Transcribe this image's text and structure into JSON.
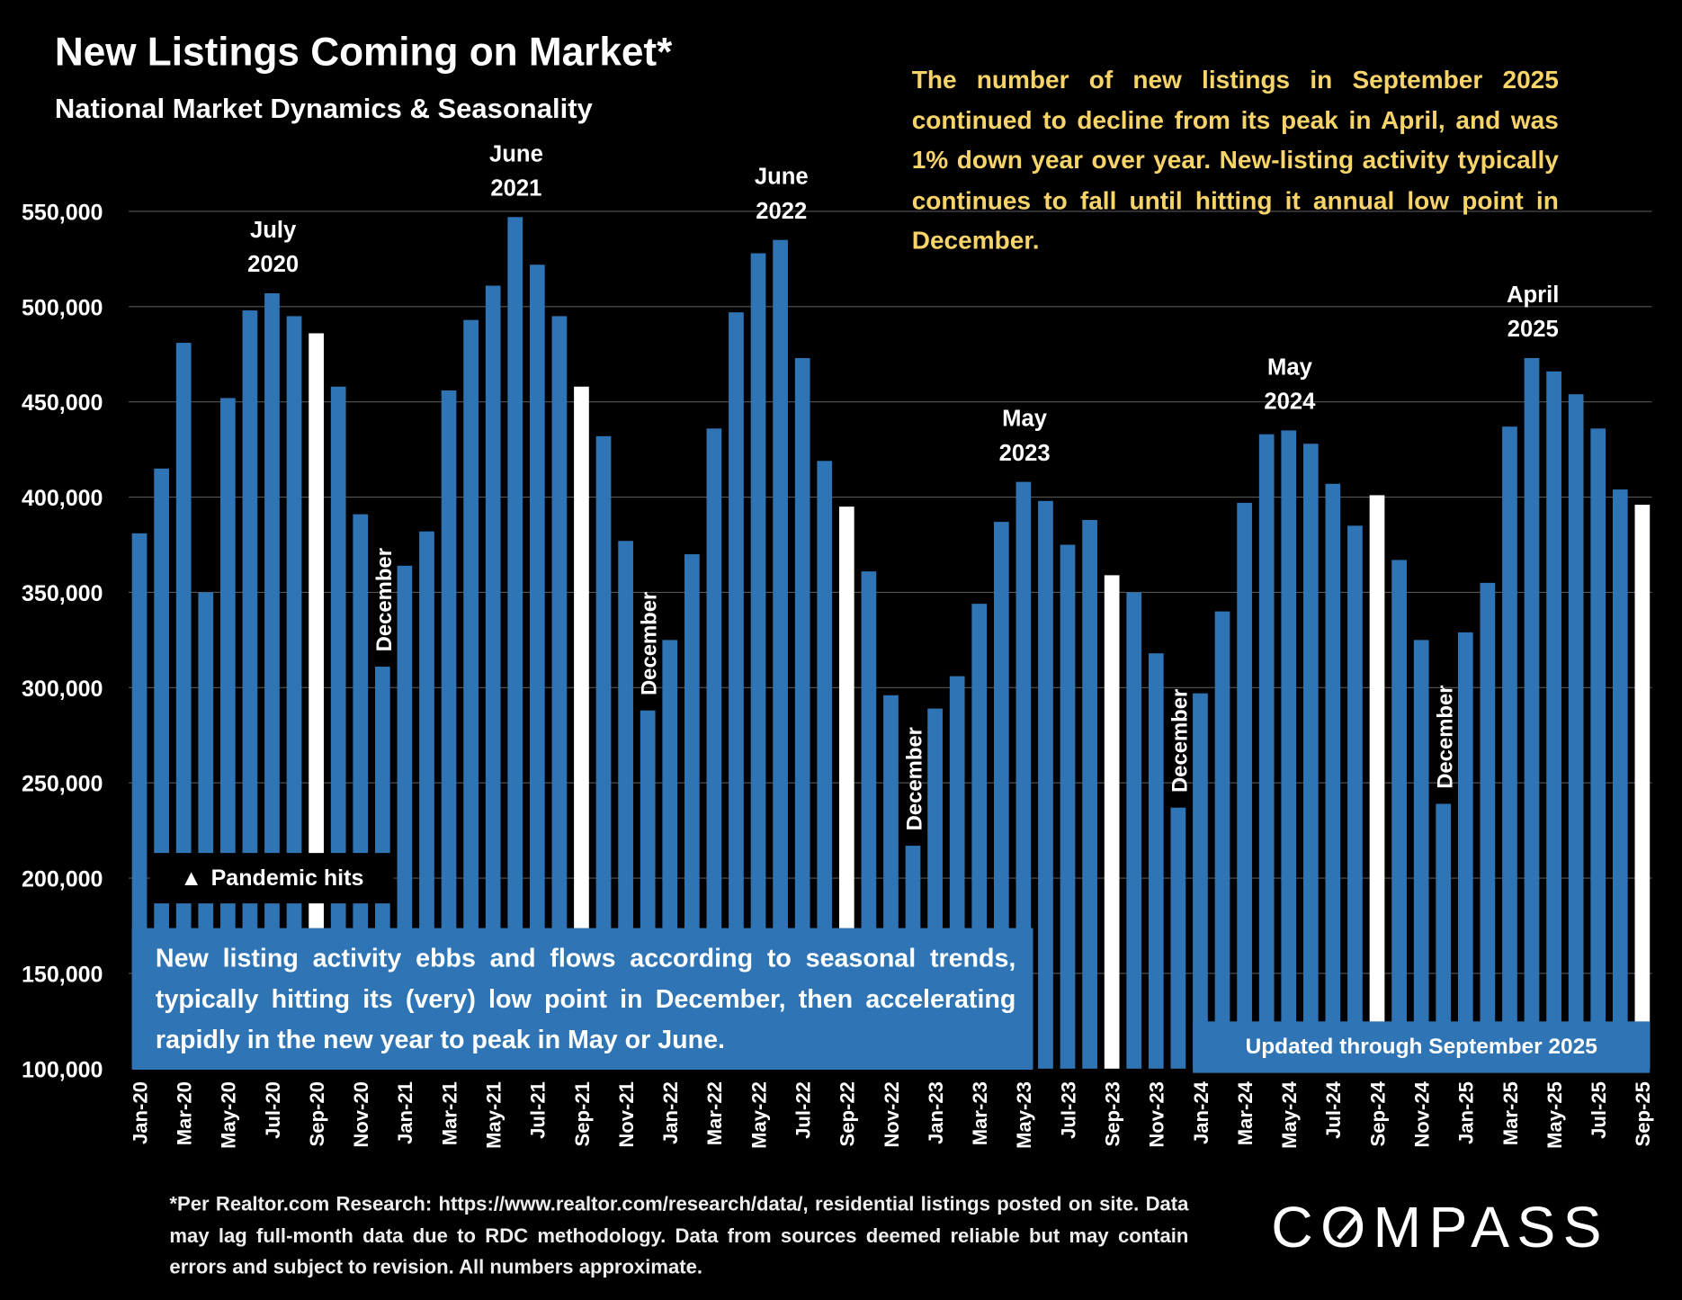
{
  "title": "New Listings Coming on Market*",
  "subtitle": "National Market Dynamics & Seasonality",
  "note": "The number of new listings in September 2025 continued to decline from its peak in April, and was 1% down year over year. New-listing activity typically continues to fall until hitting it annual low point in December.",
  "pandemic_label": "Pandemic hits",
  "seasonal_note": "New listing activity ebbs and flows according to seasonal trends, typically hitting its (very) low point in December, then accelerating rapidly in the new year to peak in May or June.",
  "updated_label": "Updated through September 2025",
  "footnote": "*Per Realtor.com Research:  https://www.realtor.com/research/data/, residential listings posted on site. Data may lag full-month data due to RDC methodology. Data from sources deemed reliable but may contain errors and subject to revision. All numbers approximate.",
  "logo": "COMPASS",
  "colors": {
    "bar": "#2f75b5",
    "september_bar": "#ffffff",
    "note_text": "#f7d46a",
    "background": "#000000",
    "grid": "#555555"
  },
  "chart_data": {
    "type": "bar",
    "ylim": [
      100000,
      550000
    ],
    "yticks": [
      "100,000",
      "150,000",
      "200,000",
      "250,000",
      "300,000",
      "350,000",
      "400,000",
      "450,000",
      "500,000",
      "550,000"
    ],
    "grid": true,
    "categories": [
      "Jan-20",
      "Feb-20",
      "Mar-20",
      "Apr-20",
      "May-20",
      "Jun-20",
      "Jul-20",
      "Aug-20",
      "Sep-20",
      "Oct-20",
      "Nov-20",
      "Dec-20",
      "Jan-21",
      "Feb-21",
      "Mar-21",
      "Apr-21",
      "May-21",
      "Jun-21",
      "Jul-21",
      "Aug-21",
      "Sep-21",
      "Oct-21",
      "Nov-21",
      "Dec-21",
      "Jan-22",
      "Feb-22",
      "Mar-22",
      "Apr-22",
      "May-22",
      "Jun-22",
      "Jul-22",
      "Aug-22",
      "Sep-22",
      "Oct-22",
      "Nov-22",
      "Dec-22",
      "Jan-23",
      "Feb-23",
      "Mar-23",
      "Apr-23",
      "May-23",
      "Jun-23",
      "Jul-23",
      "Aug-23",
      "Sep-23",
      "Oct-23",
      "Nov-23",
      "Dec-23",
      "Jan-24",
      "Feb-24",
      "Mar-24",
      "Apr-24",
      "May-24",
      "Jun-24",
      "Jul-24",
      "Aug-24",
      "Sep-24",
      "Oct-24",
      "Nov-24",
      "Dec-24",
      "Jan-25",
      "Feb-25",
      "Mar-25",
      "Apr-25",
      "May-25",
      "Jun-25",
      "Jul-25",
      "Aug-25",
      "Sep-25"
    ],
    "values": [
      381000,
      415000,
      481000,
      350000,
      452000,
      498000,
      507000,
      495000,
      486000,
      458000,
      391000,
      311000,
      364000,
      382000,
      456000,
      493000,
      511000,
      547000,
      522000,
      495000,
      458000,
      432000,
      377000,
      288000,
      325000,
      370000,
      436000,
      497000,
      528000,
      535000,
      473000,
      419000,
      395000,
      361000,
      296000,
      217000,
      289000,
      306000,
      344000,
      387000,
      408000,
      398000,
      375000,
      388000,
      359000,
      350000,
      318000,
      237000,
      297000,
      340000,
      397000,
      433000,
      435000,
      428000,
      407000,
      385000,
      401000,
      367000,
      325000,
      239000,
      329000,
      355000,
      437000,
      473000,
      466000,
      454000,
      436000,
      404000,
      396000
    ],
    "highlighted": [
      "Sep-20",
      "Sep-21",
      "Sep-22",
      "Sep-23",
      "Sep-24",
      "Sep-25"
    ],
    "peak_labels": [
      {
        "month": "Jul-20",
        "lines": [
          "July",
          "2020"
        ]
      },
      {
        "month": "Jun-21",
        "lines": [
          "June",
          "2021"
        ]
      },
      {
        "month": "Jun-22",
        "lines": [
          "June",
          "2022"
        ]
      },
      {
        "month": "May-23",
        "lines": [
          "May",
          "2023"
        ]
      },
      {
        "month": "May-24",
        "lines": [
          "May",
          "2024"
        ]
      },
      {
        "month": "Apr-25",
        "lines": [
          "April",
          "2025"
        ]
      }
    ],
    "december_labels": [
      {
        "month": "Dec-20",
        "text": "December"
      },
      {
        "month": "Dec-21",
        "text": "December"
      },
      {
        "month": "Dec-22",
        "text": "December"
      },
      {
        "month": "Dec-23",
        "text": "December"
      },
      {
        "month": "Dec-24",
        "text": "December"
      }
    ]
  }
}
